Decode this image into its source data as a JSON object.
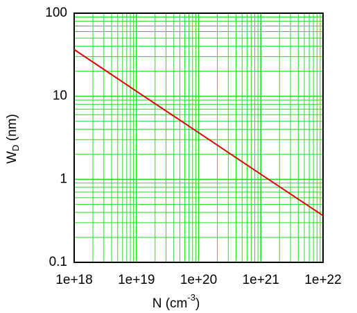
{
  "chart_data": {
    "type": "line",
    "xlabel": {
      "main": "N (cm",
      "sup": "-3",
      "end": ")"
    },
    "ylabel": {
      "main": "W",
      "sub": "D",
      "unit": " (nm)"
    },
    "x": [
      1e+18,
      1e+19,
      1e+20,
      1e+21,
      1e+22
    ],
    "series": [
      {
        "color": "#e00000",
        "values": [
          36.5,
          11.5,
          3.65,
          1.15,
          0.365
        ]
      }
    ],
    "xscale": "log",
    "yscale": "log",
    "xlim": [
      1e+18,
      1e+22
    ],
    "ylim": [
      0.1,
      100
    ],
    "xticks": [
      {
        "value": 1e+18,
        "label": "1e+18"
      },
      {
        "value": 1e+19,
        "label": "1e+19"
      },
      {
        "value": 1e+20,
        "label": "1e+20"
      },
      {
        "value": 1e+21,
        "label": "1e+21"
      },
      {
        "value": 1e+22,
        "label": "1e+22"
      }
    ],
    "yticks": [
      0.1,
      1,
      10,
      100
    ],
    "grid": true,
    "minor_grid": true,
    "grid_color": "#22dd22"
  }
}
